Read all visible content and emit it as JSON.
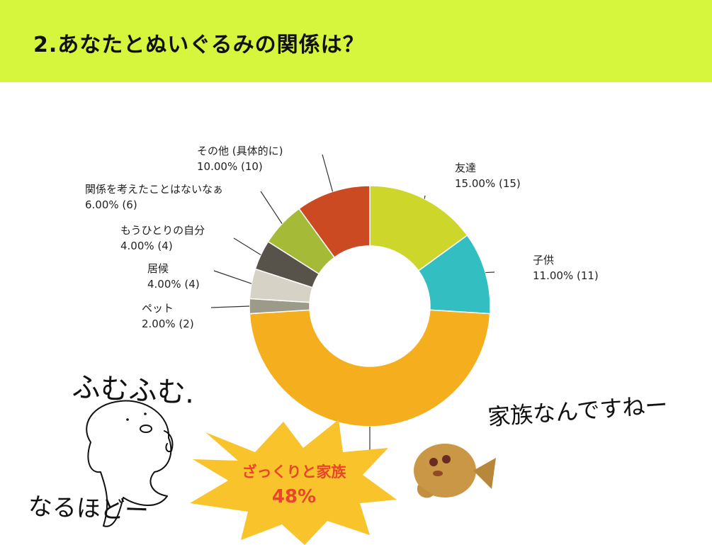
{
  "header": {
    "title": "2.あなたとぬいぐるみの関係は？",
    "bg_color": "#d6f53d"
  },
  "chart_data": {
    "type": "pie",
    "variant": "donut",
    "slices": [
      {
        "name": "友達",
        "percent": 15.0,
        "count": 15,
        "pct_text": "15.00% (15)",
        "color": "#ccd62b"
      },
      {
        "name": "子供",
        "percent": 11.0,
        "count": 11,
        "pct_text": "11.00% (11)",
        "color": "#33bec2"
      },
      {
        "name": "ざっくりと家族",
        "percent": 48.0,
        "count": 48,
        "pct_text": "",
        "color": "#f4ae1e"
      },
      {
        "name": "ペット",
        "percent": 2.0,
        "count": 2,
        "pct_text": "2.00% (2)",
        "color": "#9c9a88"
      },
      {
        "name": "居候",
        "percent": 4.0,
        "count": 4,
        "pct_text": "4.00% (4)",
        "color": "#d6d3c6"
      },
      {
        "name": "もうひとりの自分",
        "percent": 4.0,
        "count": 4,
        "pct_text": "4.00% (4)",
        "color": "#57534a"
      },
      {
        "name": "関係を考えたことはないなぁ",
        "percent": 6.0,
        "count": 6,
        "pct_text": "6.00% (6)",
        "color": "#a5bb37"
      },
      {
        "name": "その他 (具体的に)",
        "percent": 10.0,
        "count": 10,
        "pct_text": "10.00% (10)",
        "color": "#cb4a22"
      }
    ]
  },
  "callout": {
    "label": "ざっくりと家族",
    "percent": "48%",
    "star_color": "#f9c32c",
    "text_color": "#e8452a"
  },
  "annotations": {
    "fumufumu": "ふむふむ.",
    "naruhodo": "なるほどー",
    "kazoku": "家族なんですねー"
  }
}
